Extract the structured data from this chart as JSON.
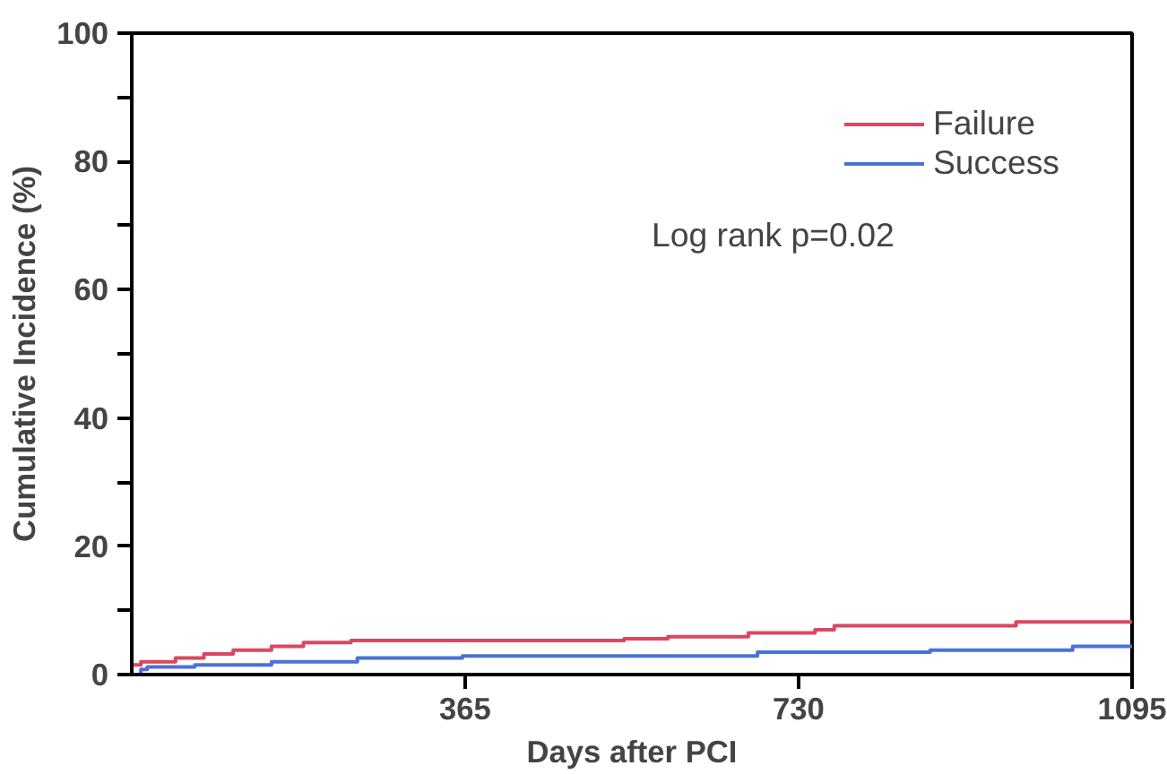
{
  "chart_data": {
    "type": "step",
    "xlabel": "Days after PCI",
    "ylabel": "Cumulative Incidence (%)",
    "annotations": [
      "Log rank p=0.02"
    ],
    "xlim": [
      0,
      1095
    ],
    "xticks": [
      365,
      730,
      1095
    ],
    "ylim": [
      0,
      100
    ],
    "yticks": [
      0,
      {
        "value": 10,
        "label": null
      },
      20,
      {
        "value": 30,
        "label": null
      },
      40,
      {
        "value": 50,
        "label": null
      },
      60,
      {
        "value": 70,
        "label": null
      },
      80,
      {
        "value": 90,
        "label": null
      },
      100
    ],
    "grid": false,
    "legend": "top right",
    "line_style": "solid",
    "series": [
      {
        "name": "Failure",
        "color": "#d9485f",
        "x": [
          0,
          10,
          48,
          79,
          111,
          153,
          188,
          240,
          539,
          587,
          675,
          748,
          769,
          968,
          1095
        ],
        "values": [
          1.5,
          2,
          2.6,
          3.2,
          3.8,
          4.4,
          5,
          5.3,
          5.6,
          5.9,
          6.5,
          7,
          7.6,
          8.2,
          8.2
        ]
      },
      {
        "name": "Success",
        "color": "#4a72d6",
        "x": [
          0,
          10,
          17,
          69,
          153,
          247,
          362,
          685,
          874,
          1030,
          1095
        ],
        "values": [
          0,
          0.8,
          1.2,
          1.5,
          2,
          2.6,
          2.9,
          3.5,
          3.8,
          4.4,
          4.4
        ]
      }
    ]
  }
}
